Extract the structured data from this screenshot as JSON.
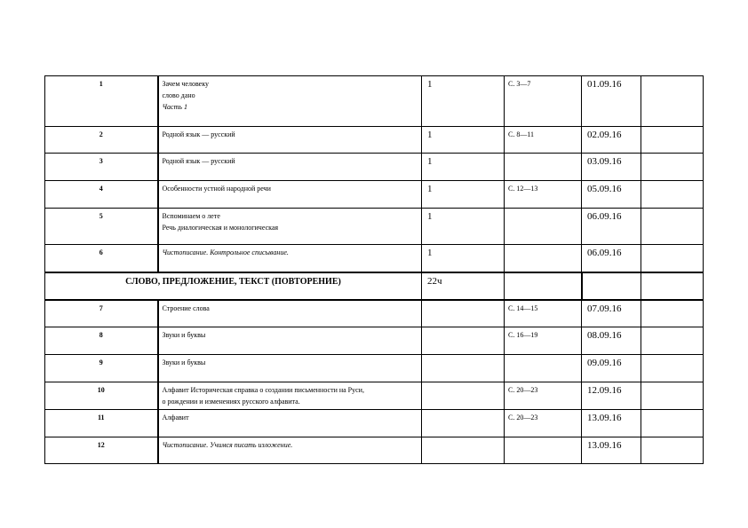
{
  "rows_top": [
    {
      "num": "1",
      "lines": [
        "Зачем  человеку",
        "слово дано"
      ],
      "italic_line": "Часть 1",
      "hours": "1",
      "pages": "С. 3—7",
      "date": "01.09.16"
    },
    {
      "num": "2",
      "lines": [
        " Родной язык — русский"
      ],
      "hours": "1",
      "pages": " С. 8—11",
      "date": "02.09.16"
    },
    {
      "num": "3",
      "lines": [
        " Родной язык — русский"
      ],
      "hours": "1",
      "pages": "",
      "date": "03.09.16"
    },
    {
      "num": "4",
      "lines": [
        "Особенности устной народной  речи"
      ],
      "hours": "1",
      "pages": "С. 12—13",
      "date": "05.09.16"
    },
    {
      "num": "5",
      "lines": [
        "Вспоминаем о лете",
        "Речь диалогическая и монологическая"
      ],
      "hours": "1",
      "pages": "",
      "date": "06.09.16"
    },
    {
      "num": "6",
      "italic_line": "Чистописание. Контрольное списывание.",
      "hours": "1",
      "pages": "",
      "date": "06.09.16"
    }
  ],
  "section": {
    "title": "СЛОВО, ПРЕДЛОЖЕНИЕ, ТЕКСТ (ПОВТОРЕНИЕ)",
    "hours": "22ч"
  },
  "rows_bottom": [
    {
      "num": "7",
      "lines": [
        "Строение слова"
      ],
      "pages": "С. 14—15",
      "date": "07.09.16"
    },
    {
      "num": "8",
      "lines": [
        "Звуки и буквы"
      ],
      "pages": "С. 16—19",
      "date": "08.09.16"
    },
    {
      "num": "9",
      "lines": [
        "Звуки и буквы"
      ],
      "pages": "",
      "date": "09.09.16"
    },
    {
      "num": "10",
      "lines": [
        "Алфавит Историческая справка о создании письменности на Руси,",
        "о рождении и изменениях русского алфавита."
      ],
      "pages": "С. 20—23",
      "date": "12.09.16"
    },
    {
      "num": "11",
      "lines": [
        "Алфавит"
      ],
      "pages": "С. 20—23",
      "date": "13.09.16"
    },
    {
      "num": "12",
      "italic_line": "Чистописание. Учимся писать изложение.",
      "pages": "",
      "date": "13.09.16"
    }
  ]
}
